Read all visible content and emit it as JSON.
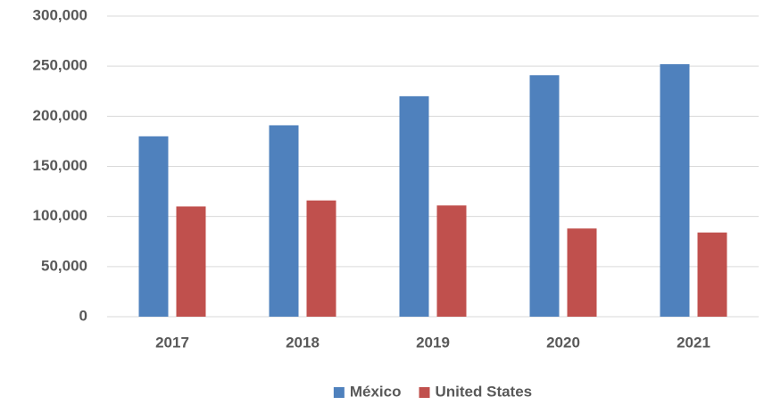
{
  "chart_data": {
    "type": "bar",
    "categories": [
      "2017",
      "2018",
      "2019",
      "2020",
      "2021"
    ],
    "series": [
      {
        "name": "México",
        "color": "#4f81bd",
        "values": [
          180000,
          191000,
          220000,
          241000,
          252000
        ]
      },
      {
        "name": "United States",
        "color": "#c0504d",
        "values": [
          110000,
          116000,
          111000,
          88000,
          84000
        ]
      }
    ],
    "ylim": [
      0,
      300000
    ],
    "yticks": [
      0,
      {
        "value": 50000,
        "label": "50,000"
      },
      {
        "value": 100000,
        "label": "100,000"
      },
      {
        "value": 150000,
        "label": "150,000"
      },
      {
        "value": 200000,
        "label": "200,000"
      },
      {
        "value": 250000,
        "label": "250,000"
      },
      {
        "value": 300000,
        "label": "300,000"
      }
    ],
    "grid": true,
    "legend": "bottom"
  }
}
